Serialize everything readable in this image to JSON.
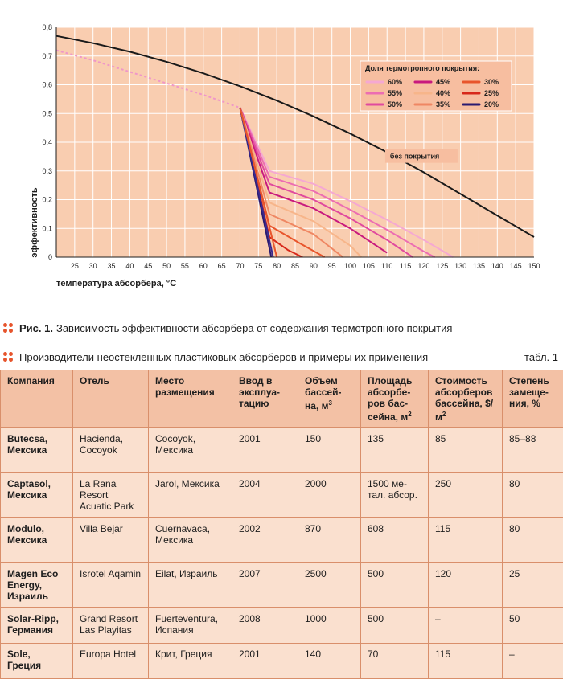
{
  "chart_data": {
    "type": "line",
    "xlabel": "температура абсорбера, °С",
    "ylabel": "эффективность",
    "xlim": [
      20,
      150
    ],
    "ylim": [
      0,
      0.8
    ],
    "x_ticks": [
      25,
      30,
      35,
      40,
      45,
      50,
      55,
      60,
      65,
      70,
      75,
      80,
      85,
      90,
      95,
      100,
      105,
      110,
      115,
      120,
      125,
      130,
      135,
      140,
      145,
      150
    ],
    "y_ticks": [
      "0",
      "0,1",
      "0,2",
      "0,3",
      "0,4",
      "0,5",
      "0,6",
      "0,7",
      "0,8"
    ],
    "grid": true,
    "legend_title": "Доля термотропного покрытия:",
    "legend_position": "top-right",
    "reference_series": {
      "name": "без покрытия",
      "color": "#1a1a1a",
      "x": [
        20,
        30,
        40,
        50,
        60,
        70,
        80,
        90,
        100,
        110,
        120,
        130,
        140,
        150
      ],
      "y": [
        0.77,
        0.745,
        0.715,
        0.68,
        0.64,
        0.595,
        0.545,
        0.49,
        0.43,
        0.365,
        0.295,
        0.22,
        0.145,
        0.07
      ]
    },
    "dashed_segment": {
      "x": [
        20,
        30,
        40,
        50,
        60,
        70
      ],
      "y": [
        0.72,
        0.685,
        0.645,
        0.605,
        0.565,
        0.52
      ],
      "color": "#ef97c8"
    },
    "series": [
      {
        "name": "60%",
        "color": "#f5a8d2",
        "x": [
          70,
          78,
          90,
          100,
          110,
          120,
          128
        ],
        "y": [
          0.52,
          0.3,
          0.255,
          0.195,
          0.13,
          0.06,
          0
        ]
      },
      {
        "name": "55%",
        "color": "#ec6db2",
        "x": [
          70,
          78,
          90,
          100,
          110,
          120,
          123
        ],
        "y": [
          0.52,
          0.28,
          0.23,
          0.165,
          0.095,
          0.02,
          0
        ]
      },
      {
        "name": "50%",
        "color": "#e04a9e",
        "x": [
          70,
          78,
          90,
          100,
          110,
          117
        ],
        "y": [
          0.52,
          0.255,
          0.2,
          0.135,
          0.06,
          0
        ]
      },
      {
        "name": "45%",
        "color": "#c81a7e",
        "x": [
          70,
          78,
          90,
          100,
          110
        ],
        "y": [
          0.52,
          0.225,
          0.17,
          0.1,
          0.015
        ]
      },
      {
        "name": "40%",
        "color": "#f7b58a",
        "x": [
          70,
          78,
          90,
          100,
          103
        ],
        "y": [
          0.52,
          0.19,
          0.125,
          0.04,
          0
        ]
      },
      {
        "name": "35%",
        "color": "#ef8763",
        "x": [
          70,
          78,
          90,
          98
        ],
        "y": [
          0.52,
          0.15,
          0.08,
          0
        ]
      },
      {
        "name": "30%",
        "color": "#e8552c",
        "x": [
          70,
          78,
          86,
          93
        ],
        "y": [
          0.52,
          0.11,
          0.05,
          0
        ]
      },
      {
        "name": "25%",
        "color": "#d7281a",
        "x": [
          70,
          78,
          83,
          87
        ],
        "y": [
          0.52,
          0.07,
          0.025,
          0
        ]
      },
      {
        "name": "20%",
        "color": "#2a1a70",
        "x": [
          70,
          78.5
        ],
        "y": [
          0.52,
          0
        ]
      },
      {
        "name": "",
        "color": "#3a2a90",
        "x": [
          70,
          79
        ],
        "y": [
          0.52,
          0
        ]
      },
      {
        "name": "",
        "color": "#e8552c",
        "x": [
          70,
          80
        ],
        "y": [
          0.52,
          0
        ]
      }
    ],
    "annotations": [
      {
        "text": "без покрытия",
        "x": 120,
        "y": 0.345
      }
    ]
  },
  "colors": {
    "plot_bg": "#f9cdb0",
    "grid": "#ffffff",
    "table_header_bg": "#f3c1a5",
    "table_cell_bg": "#fae0cf",
    "table_border": "#d98f6b",
    "caption_dots": "#e6542c"
  },
  "captions": {
    "fig_label": "Рис. 1.",
    "fig_text": "Зависимость эффективности абсорбера от содержания термотропного покрытия",
    "table_text": "Производители неостекленных пластиковых абсорберов и примеры их применения",
    "table_label": "табл. 1"
  },
  "table": {
    "headers": [
      {
        "text": "Компания"
      },
      {
        "text": "Отель"
      },
      {
        "text": "Место размещения"
      },
      {
        "text": "Ввод в эксплуа-тацию"
      },
      {
        "text": "Объем бассей-на, м",
        "sup": "3"
      },
      {
        "text": "Площадь абсорбе-ров бас-сейна, м",
        "sup": "2"
      },
      {
        "text": "Стоимость абсорберов бассейна, $/м",
        "sup": "2"
      },
      {
        "text": "Степень замеще-ния, %"
      }
    ],
    "rows": [
      {
        "company": "Butecsa, Мексика",
        "hotel": "Hacienda, Cocoyok",
        "place": "Cocoyok, Мексика",
        "year": "2001",
        "volume": "150",
        "area": "135",
        "cost": "85",
        "replacement": "85–88"
      },
      {
        "company": "Captasol, Мексика",
        "hotel": "La Rana Resort Acuatic Park",
        "place": "Jarol, Мексика",
        "year": "2004",
        "volume": "2000",
        "area": "1500 ме-тал. абсор.",
        "cost": "250",
        "replacement": "80"
      },
      {
        "company": "Modulo, Мексика",
        "hotel": "Villa Bejar",
        "place": "Cuernavaca, Мексика",
        "year": "2002",
        "volume": "870",
        "area": "608",
        "cost": "115",
        "replacement": "80"
      },
      {
        "company": "Magen Eco Energy, Израиль",
        "hotel": "Isrotel Aqamin",
        "place": "Eilat, Израиль",
        "year": "2007",
        "volume": "2500",
        "area": "500",
        "cost": "120",
        "replacement": "25"
      },
      {
        "company": "Solar-Ripp, Германия",
        "hotel": "Grand Resort Las Playitas",
        "place": "Fuerteventura, Испания",
        "year": "2008",
        "volume": "1000",
        "area": "500",
        "cost": "–",
        "replacement": "50"
      },
      {
        "company": "Sole, Греция",
        "hotel": "Europa Hotel",
        "place": "Крит, Греция",
        "year": "2001",
        "volume": "140",
        "area": "70",
        "cost": "115",
        "replacement": "–"
      }
    ]
  }
}
